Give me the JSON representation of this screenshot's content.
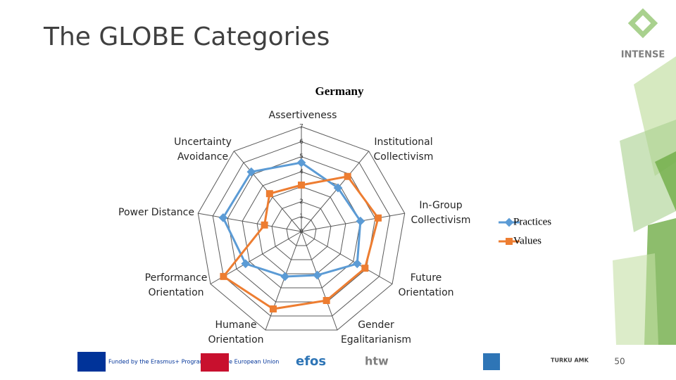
{
  "slide": {
    "title": "The GLOBE Categories",
    "logo": "INTENSE",
    "page_number": "50",
    "footer": [
      "Funded by the Erasmus+ Programme of the European Union",
      "efos",
      "htw",
      "TURKU AMK"
    ]
  },
  "chart_data": {
    "type": "radar",
    "title": "Germany",
    "categories": [
      "Assertiveness",
      "Institutional Collectivism",
      "In-Group Collectivism",
      "Future Orientation",
      "Gender Egalitarianism",
      "Humane Orientation",
      "Performance Orientation",
      "Power Distance",
      "Uncertainty Avoidance"
    ],
    "series": [
      {
        "name": "Practices",
        "color": "#5b9bd5",
        "values": [
          4.6,
          3.8,
          4.0,
          4.3,
          3.1,
          3.2,
          4.3,
          5.3,
          5.2
        ]
      },
      {
        "name": "Values",
        "color": "#ed7d31",
        "values": [
          3.1,
          4.8,
          5.2,
          4.9,
          4.9,
          5.5,
          6.0,
          2.5,
          3.3
        ]
      }
    ],
    "ylim": [
      0,
      7
    ],
    "yticks": [
      0,
      1,
      2,
      3,
      4,
      5,
      6,
      7
    ],
    "grid": true,
    "legend": "right"
  }
}
